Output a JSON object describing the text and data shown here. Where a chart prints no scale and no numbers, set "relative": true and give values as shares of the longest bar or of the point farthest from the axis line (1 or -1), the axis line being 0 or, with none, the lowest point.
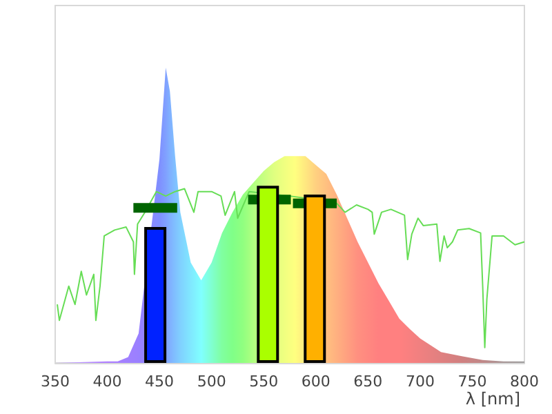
{
  "chart_data": {
    "type": "area",
    "relative": true,
    "xlabel": "λ [nm]",
    "xlim": [
      350,
      800
    ],
    "xticks": [
      350,
      400,
      450,
      500,
      550,
      600,
      650,
      700,
      750,
      800
    ],
    "grid": false,
    "series": [
      {
        "x": [
          350,
          400,
          410,
          420,
          430,
          450,
          456,
          460,
          465,
          470,
          480,
          490,
          500,
          510,
          520,
          530,
          540,
          550,
          560,
          570,
          580,
          590,
          600,
          610,
          620,
          630,
          640,
          650,
          660,
          670,
          680,
          690,
          700,
          720,
          740,
          760,
          780,
          800
        ],
        "values": [
          0,
          0.005,
          0.005,
          0.02,
          0.1,
          0.69,
          1,
          0.92,
          0.7,
          0.51,
          0.34,
          0.28,
          0.34,
          0.44,
          0.51,
          0.57,
          0.61,
          0.65,
          0.68,
          0.7,
          0.7,
          0.7,
          0.67,
          0.64,
          0.57,
          0.49,
          0.41,
          0.34,
          0.27,
          0.21,
          0.15,
          0.115,
          0.083,
          0.037,
          0.023,
          0.01,
          0.005,
          0.005
        ],
        "colors": [
          "#c0a0ff",
          "#b080ff",
          "#a880ff",
          "#a080ff",
          "#9a80ff",
          "#7f8fff",
          "#80a0ff",
          "#80b0ff",
          "#80c0ff",
          "#80d0ff",
          "#80e8ff",
          "#80ffff",
          "#80ffd0",
          "#80ffa0",
          "#80ff88",
          "#90ff80",
          "#b0ff80",
          "#c8ff80",
          "#e0ff80",
          "#f0ff80",
          "#ffff80",
          "#ffe880",
          "#ffd080",
          "#ffc080",
          "#ffb080",
          "#ffa080",
          "#ff9080",
          "#ff8880",
          "#ff8080",
          "#ff8080",
          "#ff8080",
          "#f88080",
          "#f08080",
          "#e08080",
          "#d08080",
          "#c08888",
          "#a89898",
          "#a0a0a0"
        ]
      },
      {
        "type": "line",
        "color": "#66dd55",
        "marker": "none",
        "line_style": "solid",
        "x": [
          352,
          354,
          363,
          369,
          375,
          380,
          387,
          389,
          393,
          397,
          407,
          418,
          425,
          426,
          429,
          436,
          447,
          456,
          465,
          474,
          483,
          487,
          500,
          509,
          513,
          522,
          525,
          536,
          575,
          619,
          628,
          639,
          650,
          654,
          656,
          663,
          672,
          685,
          688,
          692,
          698,
          703,
          716,
          719,
          723,
          726,
          731,
          736,
          747,
          758,
          760,
          762,
          764,
          769,
          780,
          791,
          800
        ],
        "values": [
          0.198,
          0.144,
          0.26,
          0.198,
          0.31,
          0.23,
          0.3,
          0.144,
          0.26,
          0.43,
          0.45,
          0.46,
          0.41,
          0.3,
          0.47,
          0.51,
          0.58,
          0.565,
          0.58,
          0.59,
          0.51,
          0.58,
          0.58,
          0.565,
          0.5,
          0.58,
          0.49,
          0.58,
          0.565,
          0.544,
          0.51,
          0.535,
          0.52,
          0.51,
          0.436,
          0.51,
          0.52,
          0.5,
          0.35,
          0.436,
          0.49,
          0.465,
          0.47,
          0.344,
          0.43,
          0.39,
          0.41,
          0.45,
          0.455,
          0.44,
          0.26,
          0.052,
          0.216,
          0.43,
          0.43,
          0.4,
          0.41
        ]
      },
      {
        "type": "line",
        "color": "#006400",
        "x": [
          425,
          467
        ],
        "values": [
          0.525,
          0.525
        ]
      },
      {
        "type": "line",
        "color": "#006400",
        "x": [
          535,
          576
        ],
        "values": [
          0.553,
          0.553
        ]
      },
      {
        "type": "line",
        "color": "#006400",
        "x": [
          578,
          620
        ],
        "values": [
          0.54,
          0.54
        ]
      },
      {
        "type": "bar",
        "x": [
          446,
          554,
          599
        ],
        "values": [
          0.46,
          0.6,
          0.57
        ],
        "colors": [
          "#0022ff",
          "#aaff00",
          "#ffb000"
        ]
      }
    ]
  }
}
